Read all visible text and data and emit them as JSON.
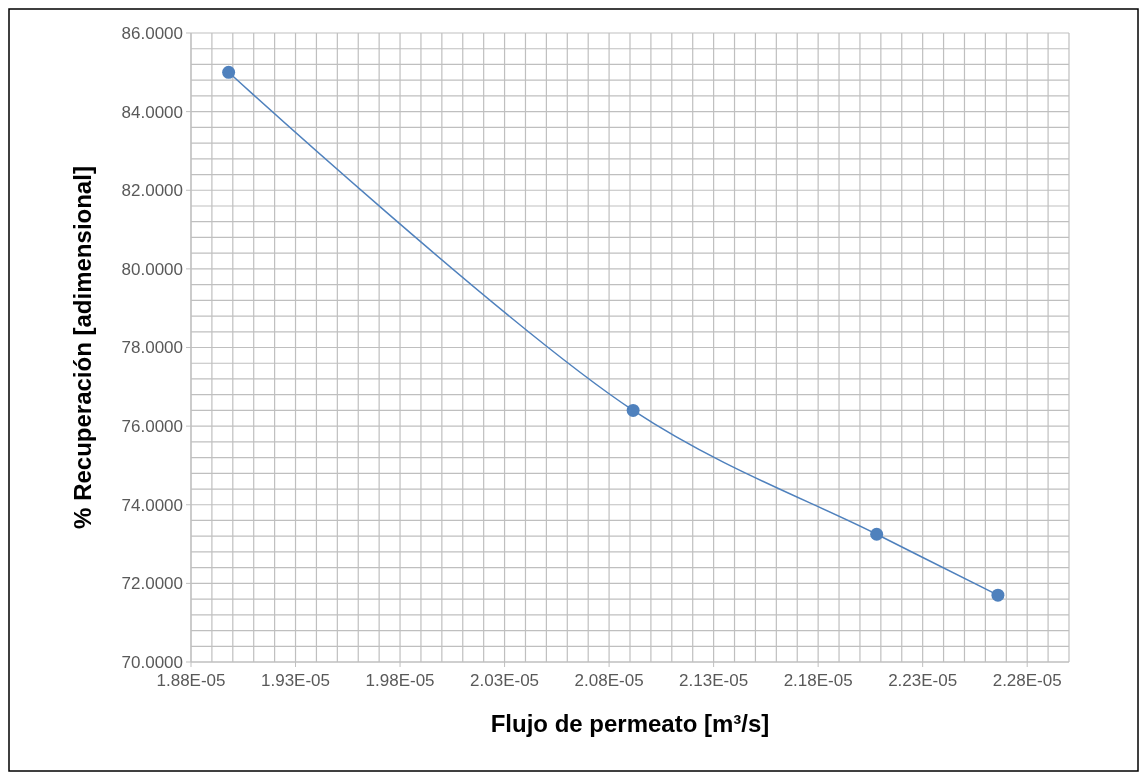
{
  "chart_data": {
    "type": "line",
    "xlabel": "Flujo de permeato [m³/s]",
    "ylabel": "% Recuperación [adimensional]",
    "series": [
      {
        "color": "#4f81bd",
        "x": [
          1.898e-05,
          2.0915e-05,
          2.208e-05,
          2.266e-05
        ],
        "values": [
          85.0,
          76.4,
          73.25,
          71.7
        ]
      }
    ],
    "xlim": [
      1.88e-05,
      2.3e-05
    ],
    "xticks": [
      {
        "value": 1.88e-05,
        "label": "1.88E-05"
      },
      {
        "value": 1.93e-05,
        "label": "1.93E-05"
      },
      {
        "value": 1.98e-05,
        "label": "1.98E-05"
      },
      {
        "value": 2.03e-05,
        "label": "2.03E-05"
      },
      {
        "value": 2.08e-05,
        "label": "2.08E-05"
      },
      {
        "value": 2.13e-05,
        "label": "2.13E-05"
      },
      {
        "value": 2.18e-05,
        "label": "2.18E-05"
      },
      {
        "value": 2.23e-05,
        "label": "2.23E-05"
      },
      {
        "value": 2.28e-05,
        "label": "2.28E-05"
      }
    ],
    "ylim": [
      70,
      86
    ],
    "yticks": [
      {
        "value": 70,
        "label": "70.0000"
      },
      {
        "value": 72,
        "label": "72.0000"
      },
      {
        "value": 74,
        "label": "74.0000"
      },
      {
        "value": 76,
        "label": "76.0000"
      },
      {
        "value": 78,
        "label": "78.0000"
      },
      {
        "value": 80,
        "label": "80.0000"
      },
      {
        "value": 82,
        "label": "82.0000"
      },
      {
        "value": 84,
        "label": "84.0000"
      },
      {
        "value": 86,
        "label": "86.0000"
      }
    ],
    "grid": true,
    "marker": "circle",
    "line_style": "solid"
  }
}
